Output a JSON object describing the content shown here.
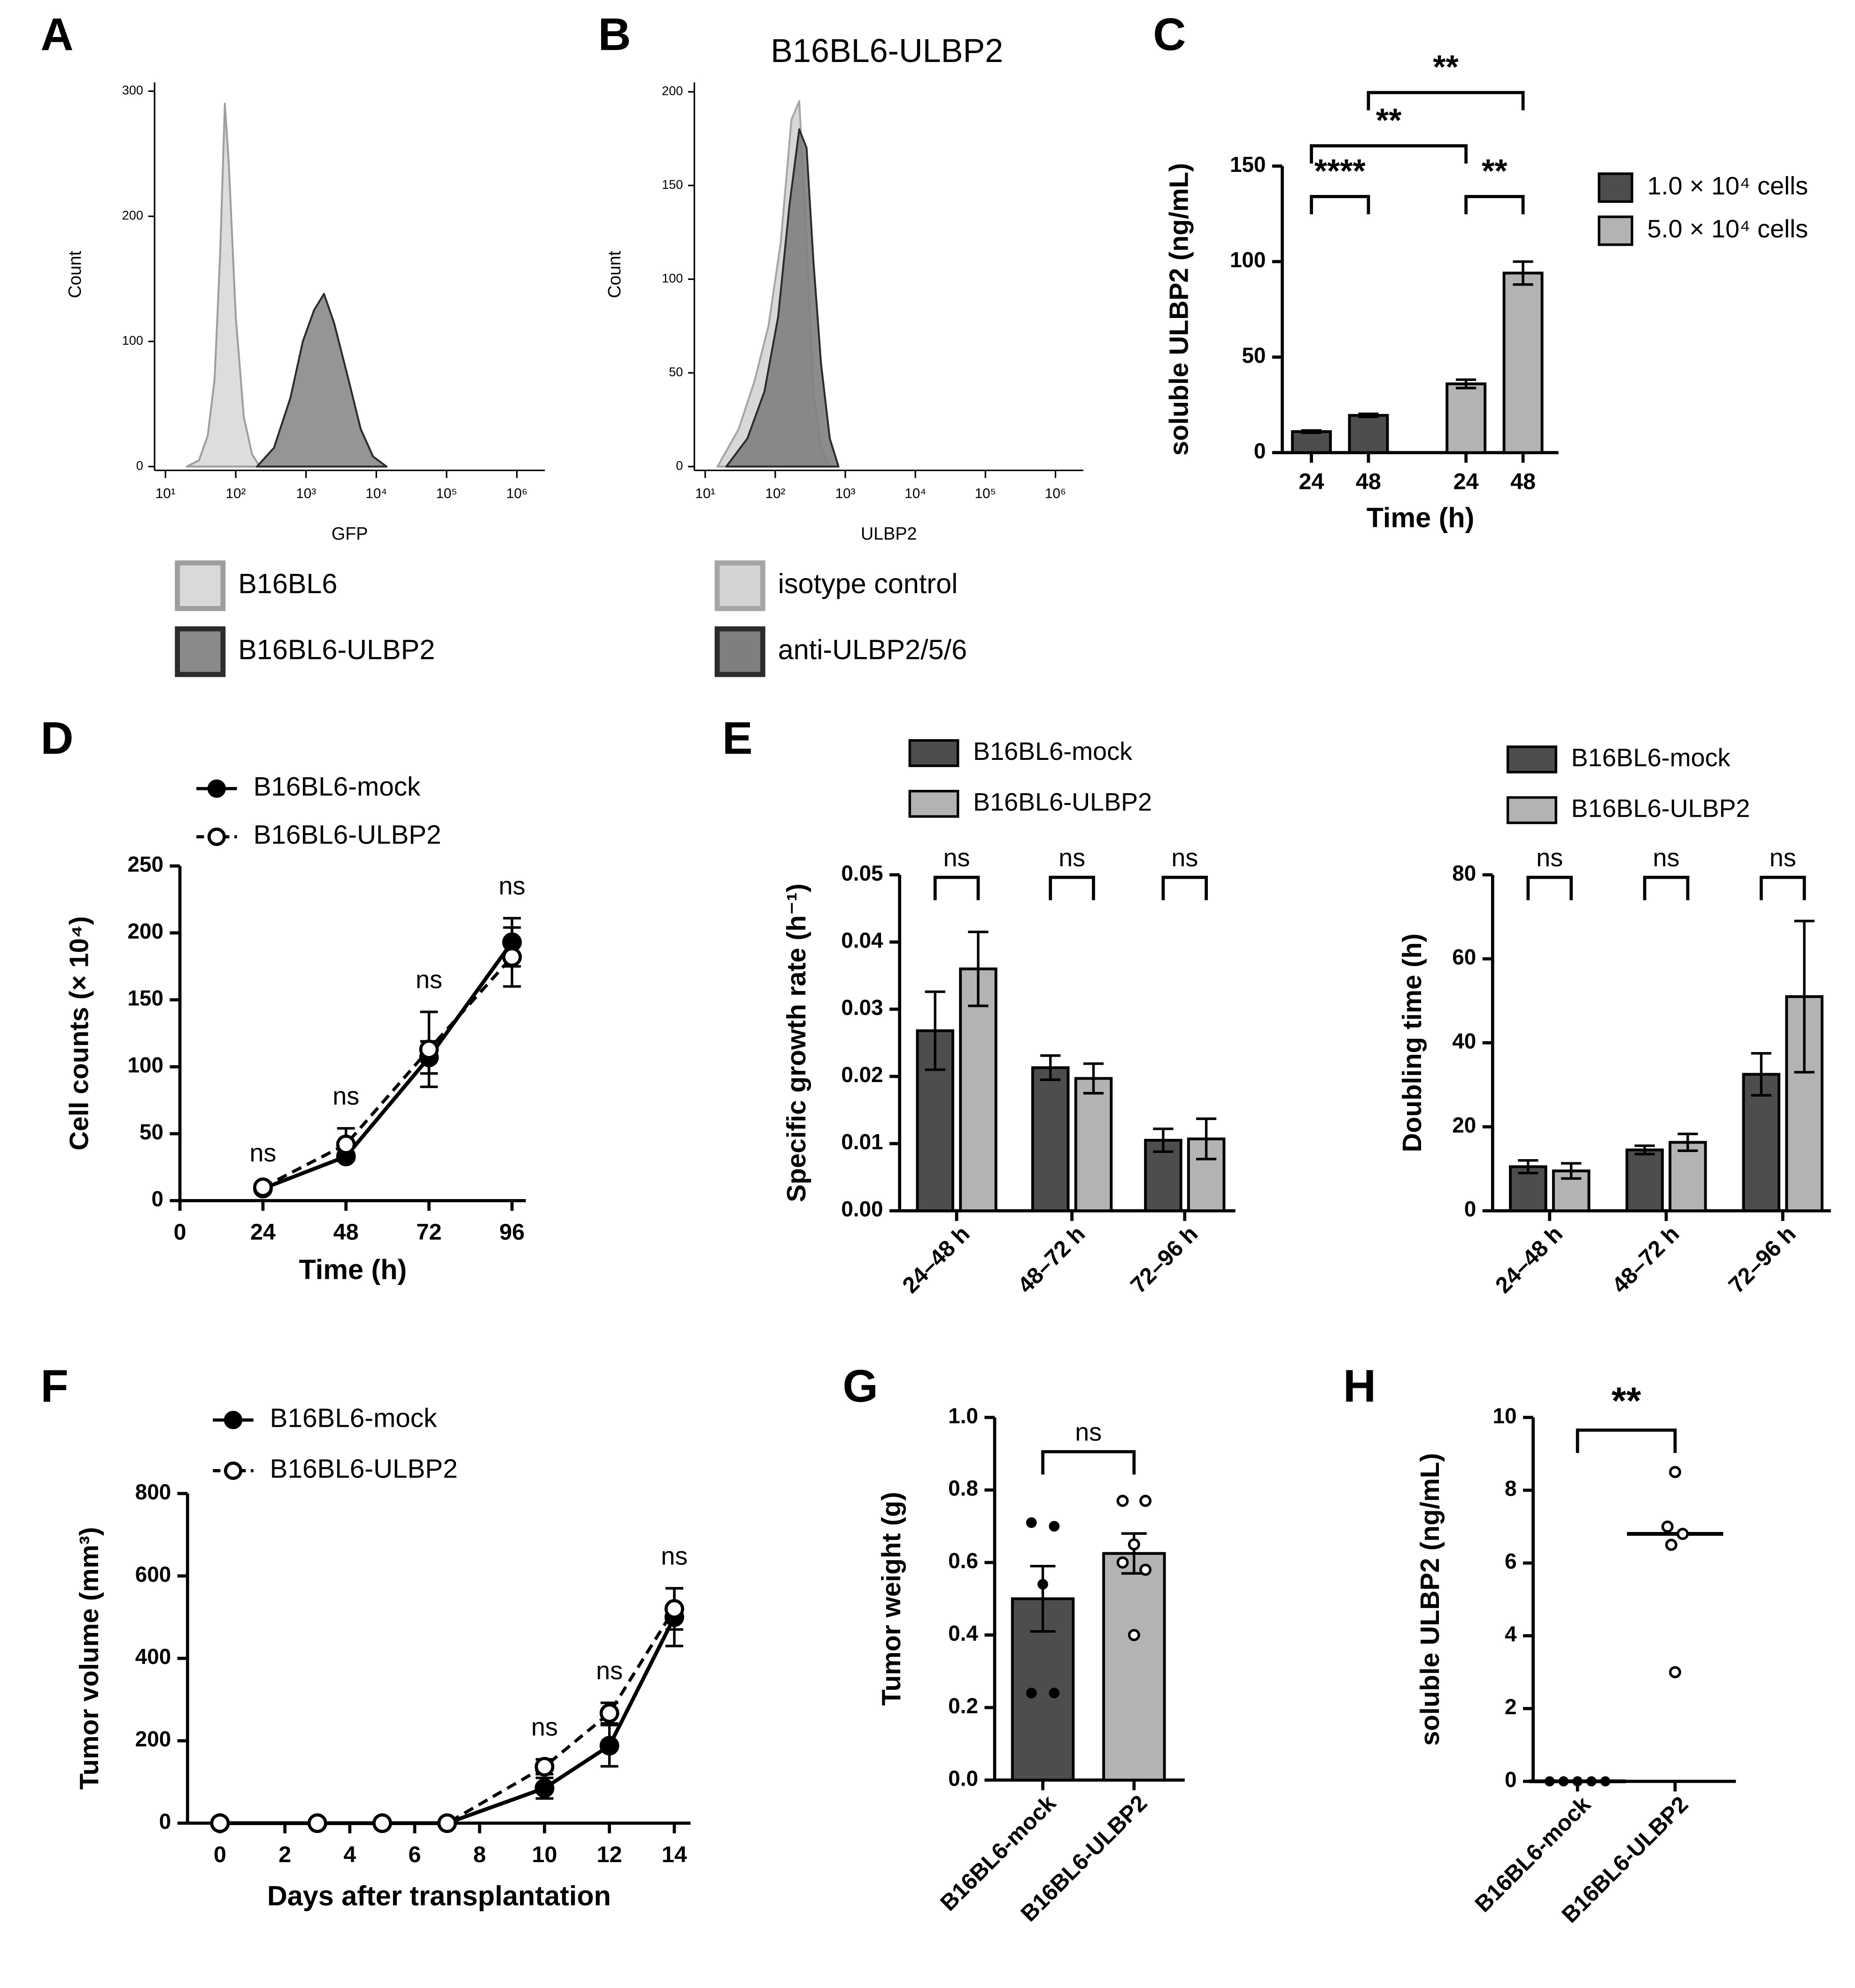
{
  "chart_data": [
    {
      "type": "histogram",
      "panel": "A",
      "xlabel": "GFP",
      "ylabel": "Count",
      "xscale": "log",
      "xlim": [
        7,
        2500000
      ],
      "xticks": [
        {
          "value": 10,
          "label": "10¹"
        },
        {
          "value": 100,
          "label": "10²"
        },
        {
          "value": 1000,
          "label": "10³"
        },
        {
          "value": 10000,
          "label": "10⁴"
        },
        {
          "value": 100000,
          "label": "10⁵"
        },
        {
          "value": 1000000,
          "label": "10⁶"
        }
      ],
      "ylim": [
        0,
        307
      ],
      "yticks": [
        0,
        100,
        200,
        300
      ],
      "series": [
        {
          "name": "B16BL6",
          "color": "#d9d9d9",
          "edge": "#9e9e9e",
          "x": [
            20,
            30,
            40,
            50,
            60,
            70,
            80,
            100,
            130,
            170,
            220
          ],
          "values": [
            0,
            5,
            25,
            70,
            170,
            290,
            240,
            120,
            40,
            10,
            0
          ]
        },
        {
          "name": "B16BL6-ULBP2",
          "color": "#8a8a8a",
          "edge": "#2b2b2b",
          "x": [
            200,
            350,
            600,
            900,
            1300,
            1800,
            2500,
            4000,
            6000,
            9000,
            14000
          ],
          "values": [
            0,
            15,
            55,
            100,
            125,
            138,
            115,
            70,
            30,
            8,
            0
          ]
        }
      ]
    },
    {
      "type": "histogram",
      "panel": "B",
      "title": "B16BL6-ULBP2",
      "xlabel": "ULBP2",
      "ylabel": "Count",
      "xscale": "log",
      "xlim": [
        7,
        2500000
      ],
      "xticks": [
        {
          "value": 10,
          "label": "10¹"
        },
        {
          "value": 100,
          "label": "10²"
        },
        {
          "value": 1000,
          "label": "10³"
        },
        {
          "value": 10000,
          "label": "10⁴"
        },
        {
          "value": 100000,
          "label": "10⁵"
        },
        {
          "value": 1000000,
          "label": "10⁶"
        }
      ],
      "ylim": [
        0,
        205
      ],
      "yticks": [
        0,
        50,
        100,
        150,
        200
      ],
      "series": [
        {
          "name": "isotype control",
          "color": "#d4d4d4",
          "edge": "#a5a5a5",
          "x": [
            15,
            30,
            50,
            80,
            120,
            170,
            220,
            280,
            350,
            450,
            600
          ],
          "values": [
            0,
            20,
            45,
            75,
            120,
            185,
            195,
            120,
            40,
            10,
            0
          ]
        },
        {
          "name": "anti-ULBP2/5/6",
          "color": "#7f7f7f",
          "edge": "#2b2b2b",
          "x": [
            20,
            40,
            70,
            110,
            160,
            220,
            280,
            350,
            450,
            600,
            800
          ],
          "values": [
            0,
            15,
            40,
            80,
            140,
            180,
            170,
            110,
            55,
            15,
            0
          ]
        }
      ]
    },
    {
      "type": "bar",
      "panel": "C",
      "ylabel": "soluble ULBP2 (ng/mL)",
      "xlabel": "Time (h)",
      "categories": [
        "24",
        "48",
        "24",
        "48"
      ],
      "ylim": [
        0,
        150
      ],
      "yticks": [
        0,
        50,
        100,
        150
      ],
      "series": [
        {
          "name": "1.0 × 10⁴ cells",
          "color": "#4d4d4d",
          "values": [
            11,
            19.5,
            null,
            null
          ],
          "errors": [
            0.6,
            0.8,
            null,
            null
          ]
        },
        {
          "name": "5.0 × 10⁴ cells",
          "color": "#b3b3b3",
          "values": [
            null,
            null,
            36,
            94
          ],
          "errors": [
            null,
            null,
            2.2,
            6
          ]
        }
      ],
      "significance": [
        "****",
        "**",
        "**",
        "**"
      ]
    },
    {
      "type": "line",
      "panel": "D",
      "xlabel": "Time (h)",
      "ylabel": "Cell counts (× 10⁴)",
      "x": [
        24,
        48,
        72,
        96
      ],
      "xlim": [
        0,
        100
      ],
      "xticks": [
        0,
        24,
        48,
        72,
        96
      ],
      "ylim": [
        0,
        250
      ],
      "yticks": [
        0,
        50,
        100,
        150,
        200,
        250
      ],
      "series": [
        {
          "name": "B16BL6-mock",
          "color": "#000000",
          "marker": "filled",
          "line": "solid",
          "values": [
            9,
            33,
            107,
            193
          ],
          "errors": [
            1,
            3,
            12,
            18
          ]
        },
        {
          "name": "B16BL6-ULBP2",
          "color": "#000000",
          "marker": "open",
          "line": "dashed",
          "values": [
            10,
            42,
            113,
            182
          ],
          "errors": [
            1.5,
            12,
            28,
            22
          ]
        }
      ],
      "annotations": [
        {
          "x": 24,
          "label": "ns"
        },
        {
          "x": 48,
          "label": "ns"
        },
        {
          "x": 72,
          "label": "ns"
        },
        {
          "x": 96,
          "label": "ns"
        }
      ]
    },
    {
      "type": "bar",
      "panel": "E",
      "ylabel": "Specific growth rate (h⁻¹)",
      "categories": [
        "24–48 h",
        "48–72 h",
        "72–96 h"
      ],
      "ylim": [
        0,
        0.05
      ],
      "yticks": [
        {
          "value": 0,
          "label": "0.00"
        },
        {
          "value": 0.01,
          "label": "0.01"
        },
        {
          "value": 0.02,
          "label": "0.02"
        },
        {
          "value": 0.03,
          "label": "0.03"
        },
        {
          "value": 0.04,
          "label": "0.04"
        },
        {
          "value": 0.05,
          "label": "0.05"
        }
      ],
      "series": [
        {
          "name": "B16BL6-mock",
          "color": "#4d4d4d",
          "values": [
            0.0268,
            0.0213,
            0.0105
          ],
          "errors": [
            0.0058,
            0.0018,
            0.0017
          ]
        },
        {
          "name": "B16BL6-ULBP2",
          "color": "#b3b3b3",
          "values": [
            0.036,
            0.0197,
            0.0107
          ],
          "errors": [
            0.0055,
            0.0022,
            0.003
          ]
        }
      ],
      "significance": [
        "ns",
        "ns",
        "ns"
      ]
    },
    {
      "type": "bar",
      "ylabel": "Doubling time (h)",
      "categories": [
        "24–48 h",
        "48–72 h",
        "72–96 h"
      ],
      "ylim": [
        0,
        80
      ],
      "yticks": [
        0,
        20,
        40,
        60,
        80
      ],
      "series": [
        {
          "name": "B16BL6-mock",
          "color": "#4d4d4d",
          "values": [
            10.5,
            14.5,
            32.5
          ],
          "errors": [
            1.5,
            1,
            5
          ]
        },
        {
          "name": "B16BL6-ULBP2",
          "color": "#b3b3b3",
          "values": [
            9.5,
            16.3,
            51
          ],
          "errors": [
            1.8,
            2,
            18
          ]
        }
      ],
      "significance": [
        "ns",
        "ns",
        "ns"
      ]
    },
    {
      "type": "line",
      "panel": "F",
      "xlabel": "Days after transplantation",
      "ylabel": "Tumor volume (mm³)",
      "x": [
        0,
        3,
        5,
        7,
        10,
        12,
        14
      ],
      "xlim": [
        -1,
        14.5
      ],
      "xticks": [
        0,
        2,
        4,
        6,
        8,
        10,
        12,
        14
      ],
      "ylim": [
        0,
        800
      ],
      "yticks": [
        0,
        200,
        400,
        600,
        800
      ],
      "series": [
        {
          "name": "B16BL6-mock",
          "color": "#000000",
          "marker": "filled",
          "line": "solid",
          "values": [
            0,
            0,
            0,
            0,
            85,
            188,
            500
          ],
          "errors": [
            0,
            0,
            0,
            0,
            25,
            50,
            70
          ]
        },
        {
          "name": "B16BL6-ULBP2",
          "color": "#000000",
          "marker": "open",
          "line": "dashed",
          "values": [
            0,
            0,
            0,
            0,
            137,
            267,
            520
          ],
          "errors": [
            0,
            0,
            0,
            0,
            18,
            25,
            50
          ]
        }
      ],
      "annotations": [
        {
          "x": 10,
          "label": "ns"
        },
        {
          "x": 12,
          "label": "ns"
        },
        {
          "x": 14,
          "label": "ns"
        }
      ]
    },
    {
      "type": "bar_dots",
      "panel": "G",
      "ylabel": "Tumor weight (g)",
      "categories": [
        "B16BL6-mock",
        "B16BL6-ULBP2"
      ],
      "ylim": [
        0,
        1
      ],
      "yticks": [
        {
          "value": 0,
          "label": "0.0"
        },
        {
          "value": 0.2,
          "label": "0.2"
        },
        {
          "value": 0.4,
          "label": "0.4"
        },
        {
          "value": 0.6,
          "label": "0.6"
        },
        {
          "value": 0.8,
          "label": "0.8"
        },
        {
          "value": 1,
          "label": "1.0"
        }
      ],
      "values": [
        0.5,
        0.625
      ],
      "errors": [
        0.09,
        0.055
      ],
      "colors": [
        "#4d4d4d",
        "#b3b3b3"
      ],
      "points": [
        [
          0.71,
          0.7,
          0.54,
          0.24,
          0.24
        ],
        [
          0.77,
          0.77,
          0.65,
          0.6,
          0.58,
          0.4
        ]
      ],
      "significance": [
        "ns"
      ]
    },
    {
      "type": "dot_plot",
      "panel": "H",
      "ylabel": "soluble ULBP2 (ng/mL)",
      "categories": [
        "B16BL6-mock",
        "B16BL6-ULBP2"
      ],
      "ylim": [
        0,
        10
      ],
      "yticks": [
        0,
        2,
        4,
        6,
        8,
        10
      ],
      "points": [
        [
          0,
          0,
          0,
          0,
          0
        ],
        [
          8.5,
          7,
          6.8,
          6.5,
          3
        ]
      ],
      "medians": [
        0,
        6.8
      ],
      "significance": [
        "**"
      ]
    }
  ]
}
